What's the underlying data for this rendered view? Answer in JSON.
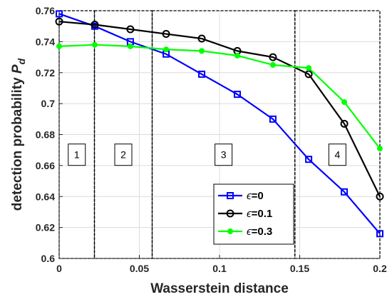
{
  "chart_data": {
    "type": "line",
    "title": "",
    "xlabel": "Wasserstein distance",
    "ylabel": "detection probability",
    "ylabel_symbol": "P",
    "ylabel_subscript": "d",
    "xlim": [
      0,
      0.2
    ],
    "ylim": [
      0.6,
      0.76
    ],
    "x_ticks": [
      0,
      0.05,
      0.1,
      0.15,
      0.2
    ],
    "x_tick_labels": [
      "0",
      "0.05",
      "0.1",
      "0.15",
      "0.2"
    ],
    "y_ticks": [
      0.6,
      0.62,
      0.64,
      0.66,
      0.68,
      0.7,
      0.72,
      0.74,
      0.76
    ],
    "y_tick_labels": [
      "0.6",
      "0.62",
      "0.64",
      "0.66",
      "0.68",
      "0.7",
      "0.72",
      "0.74",
      "0.76"
    ],
    "grid": true,
    "legend_position": "bottom-right",
    "x": [
      0,
      0.0222,
      0.0444,
      0.0667,
      0.0889,
      0.1111,
      0.1333,
      0.1556,
      0.1778,
      0.2
    ],
    "series": [
      {
        "name": "ϵ=0",
        "legend_symbol": "ϵ",
        "legend_value": "=0",
        "color": "#0000ff",
        "marker": "square",
        "values": [
          0.758,
          0.75,
          0.74,
          0.732,
          0.719,
          0.706,
          0.69,
          0.664,
          0.643,
          0.616
        ]
      },
      {
        "name": "ϵ=0.1",
        "legend_symbol": "ϵ",
        "legend_value": "=0.1",
        "color": "#000000",
        "marker": "circle",
        "values": [
          0.753,
          0.751,
          0.748,
          0.745,
          0.742,
          0.734,
          0.73,
          0.719,
          0.687,
          0.64
        ]
      },
      {
        "name": "ϵ=0.3",
        "legend_symbol": "ϵ",
        "legend_value": "=0.3",
        "color": "#00ff00",
        "marker": "filled-circle",
        "values": [
          0.737,
          0.738,
          0.737,
          0.735,
          0.734,
          0.731,
          0.725,
          0.723,
          0.701,
          0.671
        ]
      }
    ],
    "regions": [
      {
        "label": "1",
        "x_range": [
          0,
          0.022
        ]
      },
      {
        "label": "2",
        "x_range": [
          0.022,
          0.058
        ]
      },
      {
        "label": "3",
        "x_range": [
          0.058,
          0.147
        ]
      },
      {
        "label": "4",
        "x_range": [
          0.147,
          0.2
        ]
      }
    ],
    "region_y_range": [
      0.6,
      0.76
    ],
    "region_label_y": 0.667
  }
}
